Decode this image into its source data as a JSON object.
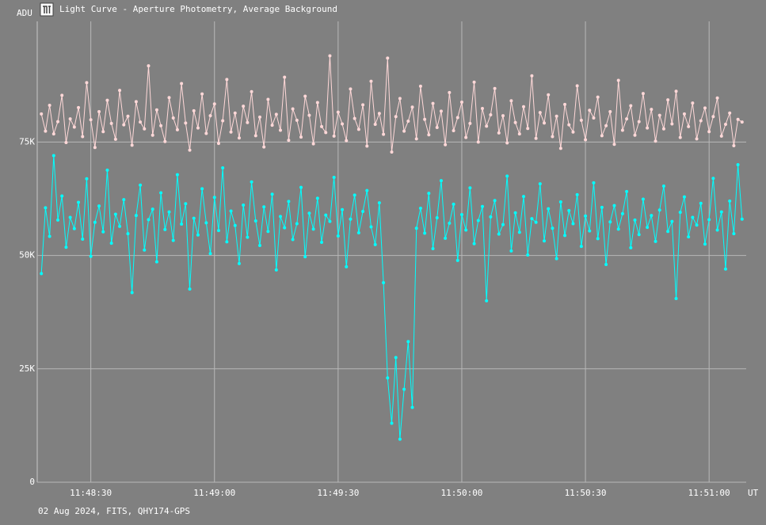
{
  "chart_data": {
    "type": "line",
    "title": "Light Curve - Aperture Photometry, Average Background",
    "y_label": "ADU",
    "x_label": "UT",
    "footer": "02 Aug 2024, FITS, QHY174-GPS",
    "grid": true,
    "xlim": [
      "11:48:17",
      "11:51:09"
    ],
    "xticks": [
      "11:48:30",
      "11:49:00",
      "11:49:30",
      "11:50:00",
      "11:50:30",
      "11:51:00"
    ],
    "ylim": [
      0,
      101600
    ],
    "yticks": [
      0,
      {
        "value": 25000,
        "label": "25K"
      },
      {
        "value": 50000,
        "label": "50K"
      },
      {
        "value": 75000,
        "label": "75K"
      }
    ],
    "x": [
      "11:48:18",
      "11:48:19",
      "11:48:20",
      "11:48:21",
      "11:48:22",
      "11:48:23",
      "11:48:24",
      "11:48:25",
      "11:48:26",
      "11:48:27",
      "11:48:28",
      "11:48:29",
      "11:48:30",
      "11:48:31",
      "11:48:32",
      "11:48:33",
      "11:48:34",
      "11:48:35",
      "11:48:36",
      "11:48:37",
      "11:48:38",
      "11:48:39",
      "11:48:40",
      "11:48:41",
      "11:48:42",
      "11:48:43",
      "11:48:44",
      "11:48:45",
      "11:48:46",
      "11:48:47",
      "11:48:48",
      "11:48:49",
      "11:48:50",
      "11:48:51",
      "11:48:52",
      "11:48:53",
      "11:48:54",
      "11:48:55",
      "11:48:56",
      "11:48:57",
      "11:48:58",
      "11:48:59",
      "11:49:00",
      "11:49:01",
      "11:49:02",
      "11:49:03",
      "11:49:04",
      "11:49:05",
      "11:49:06",
      "11:49:07",
      "11:49:08",
      "11:49:09",
      "11:49:10",
      "11:49:11",
      "11:49:12",
      "11:49:13",
      "11:49:14",
      "11:49:15",
      "11:49:16",
      "11:49:17",
      "11:49:18",
      "11:49:19",
      "11:49:20",
      "11:49:21",
      "11:49:22",
      "11:49:23",
      "11:49:24",
      "11:49:25",
      "11:49:26",
      "11:49:27",
      "11:49:28",
      "11:49:29",
      "11:49:30",
      "11:49:31",
      "11:49:32",
      "11:49:33",
      "11:49:34",
      "11:49:35",
      "11:49:36",
      "11:49:37",
      "11:49:38",
      "11:49:39",
      "11:49:40",
      "11:49:41",
      "11:49:42",
      "11:49:43",
      "11:49:44",
      "11:49:45",
      "11:49:46",
      "11:49:47",
      "11:49:48",
      "11:49:49",
      "11:49:50",
      "11:49:51",
      "11:49:52",
      "11:49:53",
      "11:49:54",
      "11:49:55",
      "11:49:56",
      "11:49:57",
      "11:49:58",
      "11:49:59",
      "11:50:00",
      "11:50:01",
      "11:50:02",
      "11:50:03",
      "11:50:04",
      "11:50:05",
      "11:50:06",
      "11:50:07",
      "11:50:08",
      "11:50:09",
      "11:50:10",
      "11:50:11",
      "11:50:12",
      "11:50:13",
      "11:50:14",
      "11:50:15",
      "11:50:16",
      "11:50:17",
      "11:50:18",
      "11:50:19",
      "11:50:20",
      "11:50:21",
      "11:50:22",
      "11:50:23",
      "11:50:24",
      "11:50:25",
      "11:50:26",
      "11:50:27",
      "11:50:28",
      "11:50:29",
      "11:50:30",
      "11:50:31",
      "11:50:32",
      "11:50:33",
      "11:50:34",
      "11:50:35",
      "11:50:36",
      "11:50:37",
      "11:50:38",
      "11:50:39",
      "11:50:40",
      "11:50:41",
      "11:50:42",
      "11:50:43",
      "11:50:44",
      "11:50:45",
      "11:50:46",
      "11:50:47",
      "11:50:48",
      "11:50:49",
      "11:50:50",
      "11:50:51",
      "11:50:52",
      "11:50:53",
      "11:50:54",
      "11:50:55",
      "11:50:56",
      "11:50:57",
      "11:50:58",
      "11:50:59",
      "11:51:00",
      "11:51:01",
      "11:51:02",
      "11:51:03",
      "11:51:04",
      "11:51:05",
      "11:51:06",
      "11:51:07",
      "11:51:08"
    ],
    "series": [
      {
        "color": "#ffd8d8",
        "values": [
          81200,
          77400,
          83100,
          76800,
          79500,
          85300,
          74900,
          80100,
          78300,
          82600,
          76200,
          88100,
          79900,
          73800,
          81700,
          77300,
          84200,
          79100,
          75600,
          86400,
          78800,
          80700,
          74300,
          83900,
          79400,
          77900,
          91800,
          76500,
          82100,
          78600,
          75100,
          84800,
          80300,
          77700,
          87900,
          79200,
          73200,
          81900,
          78100,
          85600,
          76900,
          80800,
          83400,
          74700,
          79700,
          88800,
          77200,
          81400,
          75900,
          82900,
          79300,
          86100,
          76400,
          80500,
          73900,
          84400,
          78700,
          81100,
          77600,
          89300,
          75400,
          82300,
          79800,
          76100,
          85100,
          80900,
          74600,
          83700,
          78400,
          77100,
          94000,
          76300,
          81600,
          79000,
          75300,
          86700,
          80200,
          77800,
          83200,
          74100,
          88400,
          78900,
          81300,
          76700,
          93500,
          72800,
          80600,
          84600,
          77400,
          79600,
          82700,
          75700,
          87300,
          80000,
          76600,
          83500,
          78200,
          81800,
          74400,
          85900,
          77500,
          80400,
          83800,
          76000,
          79100,
          88200,
          75000,
          82400,
          78500,
          81000,
          86800,
          77000,
          80800,
          74800,
          84100,
          79300,
          76800,
          82800,
          78000,
          89600,
          75800,
          81500,
          79200,
          85400,
          76200,
          80700,
          73600,
          83300,
          78800,
          77200,
          87400,
          79800,
          75500,
          82000,
          80300,
          84900,
          76400,
          78600,
          81700,
          74500,
          88600,
          77600,
          80100,
          83000,
          76500,
          79500,
          85700,
          78100,
          82200,
          75200,
          80900,
          77900,
          84300,
          79000,
          86200,
          76000,
          81200,
          78400,
          83600,
          75700,
          79700,
          82500,
          77300,
          80600,
          84700,
          76300,
          78900,
          81400,
          74200,
          80000,
          79400
        ]
      },
      {
        "color": "#00ffff",
        "values": [
          46000,
          60500,
          54200,
          72000,
          57800,
          63100,
          51800,
          58400,
          55900,
          61700,
          53600,
          66900,
          49800,
          57300,
          60900,
          55200,
          68800,
          52700,
          59100,
          56400,
          62300,
          54800,
          41800,
          58800,
          65500,
          51200,
          57900,
          60200,
          48600,
          63800,
          55700,
          59600,
          53300,
          67800,
          56900,
          61400,
          42600,
          58200,
          54500,
          64700,
          57200,
          50400,
          62800,
          55500,
          69300,
          53000,
          59800,
          56600,
          48200,
          61100,
          54000,
          66200,
          57600,
          52200,
          60700,
          55300,
          63500,
          46800,
          58600,
          56100,
          61900,
          53500,
          57000,
          65000,
          49700,
          59300,
          55800,
          62600,
          52900,
          58900,
          57500,
          67200,
          54300,
          60100,
          47500,
          58000,
          63300,
          55000,
          59700,
          64300,
          56300,
          52400,
          61600,
          44000,
          23000,
          13000,
          27500,
          9500,
          20500,
          31000,
          16500,
          56000,
          60400,
          54900,
          63700,
          51500,
          58300,
          66500,
          53800,
          57100,
          61300,
          48900,
          59000,
          55600,
          64900,
          52600,
          57700,
          60800,
          40000,
          58500,
          62100,
          54700,
          56800,
          67500,
          51000,
          59400,
          55100,
          63000,
          50100,
          58100,
          57300,
          65800,
          53200,
          60300,
          56000,
          49300,
          61800,
          54400,
          59900,
          57000,
          63400,
          52000,
          58700,
          55400,
          66000,
          53700,
          60600,
          48000,
          57400,
          61000,
          55800,
          59200,
          64100,
          51700,
          57800,
          54600,
          62400,
          56200,
          58800,
          53100,
          60000,
          65300,
          55300,
          57500,
          40500,
          59500,
          62900,
          54100,
          58400,
          56700,
          61500,
          52500,
          57900,
          67000,
          55600,
          59600,
          47000,
          62000,
          54800,
          70000,
          58000
        ]
      }
    ]
  }
}
